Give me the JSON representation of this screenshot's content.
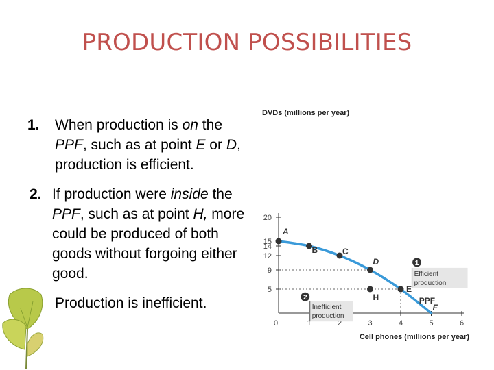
{
  "slide": {
    "title": "PRODUCTION POSSIBILITIES",
    "bullet1": {
      "number": "1.",
      "before": "When production is ",
      "em1": "on",
      "mid": " the ",
      "em2": "PPF",
      "mid2": ", such as at point ",
      "em3": "E",
      "mid3": " or ",
      "em4": "D",
      "after": ", production is efficient."
    },
    "bullet2": {
      "number": "2.",
      "before": "If production were ",
      "em1": "inside",
      "mid": " the ",
      "em2": "PPF",
      "mid2": ", such as at point ",
      "em3": "H,",
      "after": " more could be produced of both goods without forgoing either good."
    },
    "bullet3": {
      "text": "Production is inefficient."
    }
  },
  "colors": {
    "title": "#c0504d",
    "curve": "#3a9ad9",
    "box": "#e6e6e6"
  },
  "chart_data": {
    "type": "line",
    "ylabel": "DVDs (millions per year)",
    "xlabel": "Cell phones (millions per year)",
    "xlim": [
      0,
      6
    ],
    "ylim": [
      0,
      20
    ],
    "xticks": [
      0,
      1,
      2,
      3,
      4,
      5,
      6
    ],
    "yticks": [
      5,
      9,
      12,
      14,
      15,
      20
    ],
    "series": [
      {
        "points": [
          {
            "label": "A",
            "x": 0,
            "y": 15
          },
          {
            "label": "B",
            "x": 1,
            "y": 14
          },
          {
            "label": "C",
            "x": 2,
            "y": 12
          },
          {
            "label": "D",
            "x": 3,
            "y": 9
          },
          {
            "label": "E",
            "x": 4,
            "y": 5
          },
          {
            "label": "F",
            "x": 5,
            "y": 0
          }
        ]
      }
    ],
    "extra_points": [
      {
        "label": "H",
        "x": 3,
        "y": 5
      }
    ],
    "curve_label": "PPF",
    "callouts": [
      {
        "num": "1",
        "line1": "Efficient",
        "line2": "production"
      },
      {
        "num": "2",
        "line1": "Inefficient",
        "line2": "production"
      }
    ]
  }
}
